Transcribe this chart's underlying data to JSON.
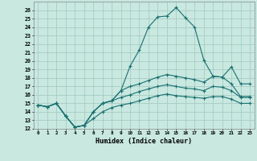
{
  "xlabel": "Humidex (Indice chaleur)",
  "xlim": [
    -0.5,
    23.5
  ],
  "ylim": [
    12,
    27
  ],
  "yticks": [
    12,
    13,
    14,
    15,
    16,
    17,
    18,
    19,
    20,
    21,
    22,
    23,
    24,
    25,
    26
  ],
  "xtick_labels": [
    "0",
    "1",
    "2",
    "3",
    "4",
    "5",
    "6",
    "7",
    "8",
    "9",
    "10",
    "11",
    "12",
    "13",
    "14",
    "15",
    "16",
    "17",
    "18",
    "19",
    "20",
    "21",
    "22",
    "23"
  ],
  "bg_color": "#c8e8e0",
  "line_color": "#1a7070",
  "grid_color": "#a0c8c0",
  "series": [
    [
      14.8,
      14.6,
      15.0,
      13.5,
      12.2,
      12.4,
      14.0,
      15.0,
      15.3,
      16.5,
      19.4,
      21.3,
      24.0,
      25.2,
      25.3,
      26.3,
      25.1,
      24.0,
      20.1,
      18.2,
      18.1,
      19.3,
      17.3,
      17.3
    ],
    [
      14.8,
      14.6,
      15.0,
      13.5,
      12.2,
      12.4,
      14.0,
      15.0,
      15.3,
      16.5,
      17.0,
      17.3,
      17.7,
      18.1,
      18.4,
      18.2,
      18.0,
      17.8,
      17.5,
      18.2,
      18.1,
      17.3,
      15.8,
      15.8
    ],
    [
      14.8,
      14.6,
      15.0,
      13.5,
      12.2,
      12.4,
      14.0,
      15.0,
      15.3,
      15.7,
      16.0,
      16.4,
      16.7,
      17.0,
      17.2,
      17.0,
      16.8,
      16.7,
      16.5,
      17.0,
      16.9,
      16.5,
      15.7,
      15.7
    ],
    [
      14.8,
      14.6,
      15.0,
      13.5,
      12.2,
      12.4,
      13.2,
      14.0,
      14.5,
      14.8,
      15.0,
      15.3,
      15.6,
      15.9,
      16.1,
      15.9,
      15.8,
      15.7,
      15.6,
      15.8,
      15.8,
      15.5,
      15.0,
      15.0
    ]
  ]
}
